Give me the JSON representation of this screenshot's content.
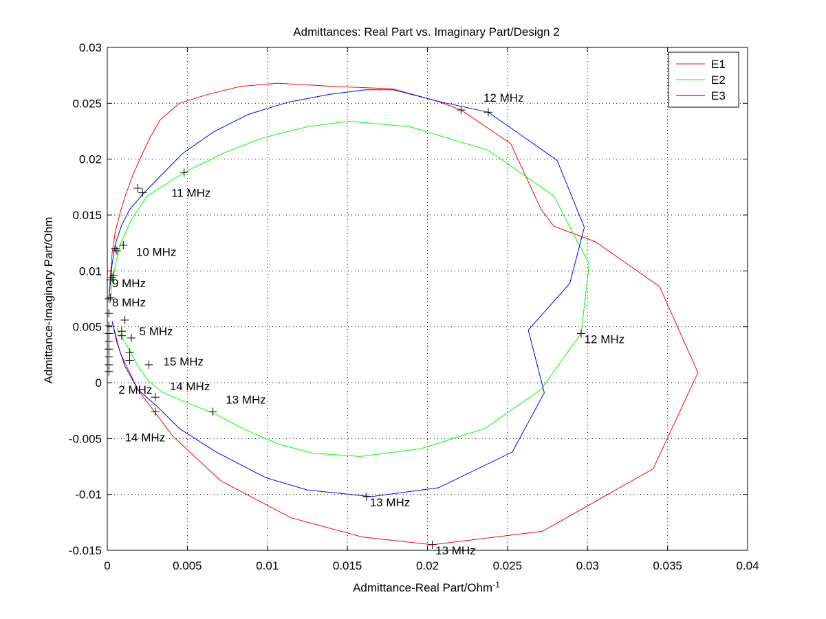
{
  "chart_data": {
    "type": "line",
    "title": "Admittances: Real Part vs. Imaginary Part/Design 2",
    "xlabel": "Admittance-Real Part/Ohm^-1",
    "xlabel_base": "Admittance-Real Part/Ohm",
    "xlabel_sup": "-1",
    "ylabel": "Admittance-Imaginary Part/Ohm",
    "xlim": [
      0,
      0.04
    ],
    "ylim": [
      -0.015,
      0.03
    ],
    "xticks": [
      0,
      0.005,
      0.01,
      0.015,
      0.02,
      0.025,
      0.03,
      0.035,
      0.04
    ],
    "xtick_labels": [
      "0",
      "0.005",
      "0.01",
      "0.015",
      "0.02",
      "0.025",
      "0.03",
      "0.035",
      "0.04"
    ],
    "yticks": [
      -0.015,
      -0.01,
      -0.005,
      0,
      0.005,
      0.01,
      0.015,
      0.02,
      0.025,
      0.03
    ],
    "ytick_labels": [
      "-0.015",
      "-0.01",
      "-0.005",
      "0",
      "0.005",
      "0.01",
      "0.015",
      "0.02",
      "0.025",
      "0.03"
    ],
    "grid": true,
    "legend_position": "top-right",
    "series": [
      {
        "name": "E1",
        "color": "#ff0000",
        "x": [
          0.0001,
          0.0002,
          0.0003,
          0.0005,
          0.0008,
          0.0011,
          0.0016,
          0.0022,
          0.0027,
          0.0033,
          0.0045,
          0.0063,
          0.0083,
          0.0106,
          0.0142,
          0.0178,
          0.0206,
          0.0221,
          0.0252,
          0.0271,
          0.0279,
          0.0305,
          0.0345,
          0.0369,
          0.0341,
          0.0272,
          0.0203,
          0.0159,
          0.0115,
          0.0071,
          0.0041,
          0.0019,
          0.0008,
          0.0003
        ],
        "y": [
          0.0075,
          0.0096,
          0.0116,
          0.0135,
          0.0152,
          0.0166,
          0.0186,
          0.0205,
          0.022,
          0.0235,
          0.025,
          0.0258,
          0.0265,
          0.0268,
          0.0265,
          0.0263,
          0.0252,
          0.0244,
          0.0214,
          0.0155,
          0.014,
          0.0126,
          0.0086,
          0.0009,
          -0.0077,
          -0.0133,
          -0.0145,
          -0.0138,
          -0.0121,
          -0.0088,
          -0.0048,
          -0.0006,
          0.0027,
          0.0055
        ]
      },
      {
        "name": "E2",
        "color": "#00ff00",
        "x": [
          0.0002,
          0.0003,
          0.0005,
          0.0008,
          0.0015,
          0.0025,
          0.0048,
          0.0072,
          0.0097,
          0.0125,
          0.0151,
          0.0189,
          0.0238,
          0.0279,
          0.0301,
          0.0296,
          0.0271,
          0.0236,
          0.0196,
          0.0158,
          0.0128,
          0.0107,
          0.0086,
          0.0066,
          0.0048,
          0.0035,
          0.0026,
          0.0019,
          0.0014,
          0.0009,
          0.0006
        ],
        "y": [
          0.0075,
          0.0089,
          0.0105,
          0.0123,
          0.0146,
          0.0167,
          0.0188,
          0.0205,
          0.0219,
          0.0229,
          0.0234,
          0.0229,
          0.0208,
          0.0167,
          0.0106,
          0.0044,
          -0.0006,
          -0.0041,
          -0.0059,
          -0.0066,
          -0.0063,
          -0.0055,
          -0.0042,
          -0.0027,
          -0.0017,
          -0.0009,
          0.0001,
          0.0015,
          0.0029,
          0.0041,
          0.0049
        ]
      },
      {
        "name": "E3",
        "color": "#0000ff",
        "x": [
          0.0001,
          0.0002,
          0.0003,
          0.0005,
          0.0009,
          0.0014,
          0.0023,
          0.0034,
          0.0047,
          0.0066,
          0.0088,
          0.0113,
          0.0139,
          0.0161,
          0.0179,
          0.0209,
          0.0238,
          0.0281,
          0.0298,
          0.0289,
          0.0263,
          0.0273,
          0.0253,
          0.0207,
          0.0165,
          0.0125,
          0.0099,
          0.0068,
          0.0045,
          0.0031,
          0.0019,
          0.0011,
          0.0006,
          0.0003
        ],
        "y": [
          0.0075,
          0.0091,
          0.0106,
          0.0124,
          0.0141,
          0.0155,
          0.017,
          0.0186,
          0.0205,
          0.0224,
          0.024,
          0.0251,
          0.0258,
          0.0262,
          0.0262,
          0.0251,
          0.0242,
          0.0199,
          0.0139,
          0.0089,
          0.0047,
          -0.0009,
          -0.0062,
          -0.0094,
          -0.0102,
          -0.0096,
          -0.0085,
          -0.0062,
          -0.0041,
          -0.0021,
          -0.0006,
          0.0015,
          0.0036,
          0.0055
        ]
      }
    ],
    "markers": [
      {
        "x": 0.0001,
        "y": 0.001
      },
      {
        "x": 0.0001,
        "y": 0.0016
      },
      {
        "x": 0.0001,
        "y": 0.0023
      },
      {
        "x": 0.0001,
        "y": 0.003
      },
      {
        "x": 0.0001,
        "y": 0.0037
      },
      {
        "x": 0.0001,
        "y": 0.0044
      },
      {
        "x": 0.0001,
        "y": 0.0051
      },
      {
        "x": 0.0001,
        "y": 0.0062
      },
      {
        "x": 0.0001,
        "y": 0.0075
      },
      {
        "x": 0.0002,
        "y": 0.0076
      },
      {
        "x": 0.0002,
        "y": 0.0092
      },
      {
        "x": 0.0003,
        "y": 0.0094
      },
      {
        "x": 0.0004,
        "y": 0.0096
      },
      {
        "x": 0.0005,
        "y": 0.012
      },
      {
        "x": 0.0006,
        "y": 0.0118
      },
      {
        "x": 0.001,
        "y": 0.0123
      },
      {
        "x": 0.0019,
        "y": 0.0174
      },
      {
        "x": 0.0022,
        "y": 0.017
      },
      {
        "x": 0.0048,
        "y": 0.0188
      },
      {
        "x": 0.0221,
        "y": 0.0244
      },
      {
        "x": 0.0238,
        "y": 0.0242
      },
      {
        "x": 0.0296,
        "y": 0.0044
      },
      {
        "x": 0.0011,
        "y": 0.0056
      },
      {
        "x": 0.0009,
        "y": 0.0046
      },
      {
        "x": 0.0009,
        "y": 0.0042
      },
      {
        "x": 0.0015,
        "y": 0.004
      },
      {
        "x": 0.0014,
        "y": 0.0027
      },
      {
        "x": 0.0014,
        "y": 0.002
      },
      {
        "x": 0.0026,
        "y": 0.0016
      },
      {
        "x": 0.003,
        "y": -0.0013
      },
      {
        "x": 0.003,
        "y": -0.0026
      },
      {
        "x": 0.0066,
        "y": -0.0026
      },
      {
        "x": 0.0162,
        "y": -0.0102
      },
      {
        "x": 0.0203,
        "y": -0.0145
      }
    ],
    "annotations": [
      {
        "text": "12 MHz",
        "x": 0.0235,
        "y": 0.0255
      },
      {
        "text": "11 MHz",
        "x": 0.004,
        "y": 0.017
      },
      {
        "text": "10 MHz",
        "x": 0.0018,
        "y": 0.0117
      },
      {
        "text": "9 MHz",
        "x": 0.0003,
        "y": 0.0089
      },
      {
        "text": "8 MHz",
        "x": 0.0003,
        "y": 0.0072
      },
      {
        "text": "5 MHz",
        "x": 0.002,
        "y": 0.0046
      },
      {
        "text": "15 MHz",
        "x": 0.0035,
        "y": 0.0019
      },
      {
        "text": "14 MHz",
        "x": 0.0039,
        "y": -0.0003
      },
      {
        "text": "2 MHz",
        "x": 0.0007,
        "y": -0.0006
      },
      {
        "text": "13 MHz",
        "x": 0.0074,
        "y": -0.0015
      },
      {
        "text": "14 MHz",
        "x": 0.0011,
        "y": -0.0049
      },
      {
        "text": "12 MHz",
        "x": 0.0298,
        "y": 0.0039
      },
      {
        "text": "13 MHz",
        "x": 0.0164,
        "y": -0.0107
      },
      {
        "text": "13 MHz",
        "x": 0.0205,
        "y": -0.015
      }
    ]
  }
}
